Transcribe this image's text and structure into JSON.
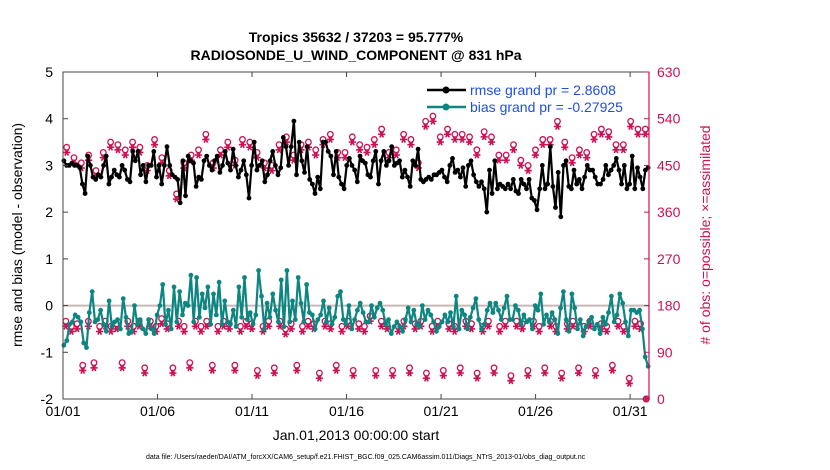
{
  "chart_data": {
    "type": "line",
    "title": "Tropics 35632 / 37203 = 95.777%",
    "subtitle": "RADIOSONDE_U_WIND_COMPONENT @ 831 hPa",
    "xlabel": "Jan.01,2013 00:00:00 start",
    "ylabel": "rmse and bias (model - observation)",
    "ylabel_right": "# of obs: o=possible; ×=assimilated",
    "footer": "data file: /Users/raeder/DAI/ATM_forcXX/CAM6_setup/f.e21.FHIST_BGC.f09_025.CAM6assim.011/Diags_NTrS_2013-01/obs_diag_output.nc",
    "x_tick_labels": [
      "01/01",
      "01/06",
      "01/11",
      "01/16",
      "01/21",
      "01/26",
      "01/31"
    ],
    "x_tick_days": [
      0,
      5,
      10,
      15,
      20,
      25,
      30
    ],
    "xlim": [
      0,
      31
    ],
    "ylim": [
      -2,
      5
    ],
    "y_ticks": [
      "-2",
      "-1",
      "0",
      "1",
      "2",
      "3",
      "4",
      "5"
    ],
    "y2lim": [
      0,
      630
    ],
    "y2_ticks": [
      "0",
      "90",
      "180",
      "270",
      "360",
      "450",
      "540",
      "630"
    ],
    "colors": {
      "rmse": "#000000",
      "bias": "#0d8580",
      "obs": "#cc1155",
      "legend_text": "#1f4fe0",
      "zero_line": "#c8b8b8"
    },
    "legend": {
      "position": "top-right",
      "entries": [
        "rmse grand pr = 2.8608",
        "bias grand pr = -0.27925"
      ]
    },
    "series": [
      {
        "name": "rmse grand pr = 2.8608",
        "axis": "left",
        "values": [
          3.1,
          3.0,
          3.0,
          3.05,
          3.0,
          3.0,
          2.95,
          2.6,
          2.4,
          3.2,
          3.0,
          2.75,
          2.7,
          2.8,
          2.75,
          3.0,
          3.2,
          2.6,
          2.75,
          2.9,
          2.8,
          2.75,
          3.0,
          2.9,
          2.7,
          2.65,
          3.3,
          3.1,
          3.3,
          2.8,
          3.0,
          2.65,
          3.0,
          3.0,
          3.3,
          2.75,
          3.0,
          2.6,
          3.0,
          3.4,
          3.0,
          2.8,
          2.75,
          2.7,
          2.2,
          3.1,
          2.35,
          3.2,
          3.1,
          3.05,
          2.55,
          2.75,
          2.7,
          3.1,
          3.2,
          3.0,
          2.9,
          3.1,
          3.2,
          2.85,
          3.0,
          3.3,
          3.05,
          2.9,
          3.35,
          3.0,
          2.75,
          2.9,
          3.1,
          2.8,
          2.3,
          3.0,
          3.5,
          2.9,
          3.0,
          3.1,
          2.65,
          2.8,
          3.1,
          3.3,
          3.0,
          2.8,
          2.95,
          3.6,
          3.4,
          3.0,
          3.4,
          3.95,
          2.8,
          3.5,
          3.1,
          2.85,
          3.4,
          2.7,
          2.6,
          2.4,
          2.75,
          2.5,
          3.5,
          3.5,
          3.3,
          3.2,
          2.8,
          3.3,
          2.75,
          2.6,
          2.5,
          3.0,
          3.15,
          3.0,
          2.9,
          2.65,
          3.2,
          3.1,
          3.05,
          2.8,
          2.75,
          3.1,
          3.3,
          2.6,
          3.1,
          3.3,
          3.0,
          3.1,
          3.4,
          3.0,
          3.05,
          3.1,
          2.75,
          2.9,
          2.75,
          2.55,
          3.1,
          3.0,
          3.35,
          2.7,
          2.65,
          2.7,
          2.75,
          2.7,
          2.8,
          2.8,
          2.85,
          2.9,
          2.75,
          2.65,
          3.0,
          3.15,
          2.85,
          2.9,
          2.75,
          2.95,
          2.55,
          3.0,
          3.1,
          2.8,
          2.65,
          2.55,
          2.65,
          2.5,
          2.0,
          2.9,
          2.4,
          3.1,
          2.5,
          2.6,
          2.55,
          2.5,
          2.6,
          2.5,
          2.7,
          2.45,
          2.4,
          2.7,
          2.6,
          2.5,
          2.7,
          2.3,
          2.25,
          2.05,
          2.5,
          3.0,
          2.5,
          2.6,
          3.4,
          2.55,
          2.1,
          2.85,
          1.9,
          3.0,
          3.1,
          2.55,
          2.5,
          2.9,
          2.6,
          2.7,
          2.5,
          2.75,
          3.0,
          2.9,
          2.9,
          2.75,
          2.6,
          2.6,
          2.7,
          3.0,
          2.8,
          2.9,
          3.0,
          3.15,
          2.9,
          2.6,
          3.0,
          2.5,
          2.6,
          3.2,
          2.5,
          2.95,
          2.75,
          2.5,
          2.9,
          2.95
        ]
      },
      {
        "name": "bias grand pr = -0.27925",
        "axis": "left",
        "values": [
          -0.85,
          -0.75,
          -0.4,
          -0.35,
          -0.2,
          -0.25,
          -0.35,
          -0.8,
          -0.9,
          -0.15,
          0.3,
          -0.35,
          -0.3,
          -0.1,
          -0.4,
          -0.55,
          0.1,
          -0.45,
          -0.35,
          -0.3,
          -0.5,
          0.15,
          -0.25,
          -0.6,
          -0.55,
          0.0,
          -0.4,
          -0.3,
          -0.5,
          -0.6,
          -0.3,
          -0.5,
          -0.6,
          -0.2,
          0.0,
          0.45,
          -0.4,
          -0.1,
          -0.5,
          0.4,
          -0.35,
          0.3,
          -0.2,
          0.05,
          0.0,
          0.65,
          -0.35,
          0.6,
          -0.25,
          0.25,
          -0.05,
          0.4,
          -0.4,
          0.25,
          -0.2,
          0.5,
          -0.4,
          0.1,
          -0.35,
          -0.4,
          -0.1,
          -0.45,
          0.4,
          -0.25,
          0.6,
          -0.3,
          -0.15,
          -0.4,
          -0.2,
          0.75,
          0.2,
          -0.5,
          0.05,
          -0.25,
          0.25,
          -0.1,
          -0.35,
          0.55,
          -0.45,
          0.75,
          -0.35,
          0.1,
          -0.3,
          0.6,
          0.05,
          -0.35,
          0.45,
          -0.15,
          -0.2,
          -0.5,
          -0.3,
          -0.2,
          0.1,
          -0.35,
          -0.05,
          -0.4,
          -0.25,
          0.2,
          0.3,
          -0.3,
          -0.4,
          0.0,
          -0.5,
          -0.3,
          -0.1,
          0.05,
          -0.15,
          -0.35,
          -0.35,
          0.0,
          -0.25,
          -0.05,
          0.05,
          -0.1,
          -0.4,
          -0.3,
          -0.6,
          -0.45,
          -0.35,
          -0.45,
          -0.55,
          -0.3,
          -0.05,
          -0.35,
          -0.1,
          -0.4,
          -0.45,
          0.0,
          -0.3,
          -0.1,
          -0.2,
          -0.35,
          -0.55,
          -0.45,
          -0.35,
          -0.2,
          -0.35,
          -0.15,
          -0.45,
          0.2,
          -0.5,
          -0.1,
          -0.2,
          -0.5,
          -0.25,
          -0.05,
          0.15,
          -0.3,
          -0.5,
          -0.4,
          -0.1,
          0.05,
          -0.15,
          0.05,
          -0.1,
          -0.3,
          -0.05,
          0.2,
          -0.3,
          -0.3,
          0.0,
          -0.1,
          -0.4,
          -0.2,
          -0.35,
          -0.3,
          -0.5,
          0.0,
          -0.1,
          0.25,
          -0.4,
          -0.2,
          -0.35,
          -0.15,
          -0.3,
          -0.6,
          -0.05,
          0.3,
          -0.3,
          -0.55,
          0.25,
          -0.05,
          -0.5,
          -0.3,
          -0.65,
          -0.45,
          -0.35,
          -0.25,
          -0.5,
          -0.4,
          -0.6,
          -0.25,
          -0.4,
          -0.15,
          0.2,
          -0.35,
          -0.2,
          0.25,
          0.05,
          -0.35,
          -0.65,
          -0.1,
          -0.1,
          -0.15,
          -0.1,
          -0.5,
          -1.1,
          -1.3
        ]
      }
    ],
    "obs_counts": {
      "axis": "right",
      "possible_upper": [
        485,
        465,
        455,
        470,
        440,
        475,
        495,
        490,
        480,
        495,
        485,
        450,
        500,
        465,
        440,
        395,
        455,
        470,
        480,
        510,
        455,
        480,
        495,
        460,
        500,
        495,
        475,
        455,
        450,
        490,
        505,
        470,
        490,
        495,
        480,
        500,
        510,
        475,
        475,
        505,
        490,
        485,
        500,
        520,
        475,
        480,
        510,
        500,
        455,
        535,
        545,
        505,
        520,
        510,
        510,
        505,
        480,
        515,
        505,
        470,
        470,
        490,
        460,
        450,
        480,
        500,
        500,
        535,
        495,
        465,
        480,
        475,
        510,
        520,
        515,
        490,
        490,
        535,
        520,
        520
      ],
      "assimilated_upper": [
        475,
        455,
        445,
        460,
        430,
        465,
        485,
        480,
        470,
        485,
        475,
        440,
        490,
        455,
        430,
        385,
        445,
        460,
        470,
        500,
        445,
        470,
        485,
        450,
        490,
        485,
        465,
        445,
        440,
        480,
        495,
        460,
        480,
        485,
        470,
        490,
        500,
        465,
        465,
        495,
        480,
        475,
        490,
        510,
        465,
        470,
        500,
        490,
        445,
        525,
        535,
        495,
        510,
        500,
        500,
        495,
        470,
        505,
        495,
        460,
        460,
        480,
        450,
        440,
        470,
        490,
        490,
        525,
        485,
        455,
        470,
        465,
        500,
        510,
        505,
        480,
        480,
        525,
        510,
        510
      ],
      "possible_lower": [
        150,
        140,
        145,
        65,
        150,
        70,
        140,
        150,
        140,
        145,
        70,
        150,
        140,
        150,
        60,
        150,
        140,
        155,
        145,
        60,
        150,
        140,
        70,
        150,
        140,
        150,
        65,
        140,
        150,
        145,
        65,
        140,
        150,
        145,
        55,
        140,
        150,
        60,
        150,
        135,
        145,
        65,
        140,
        150,
        145,
        50,
        150,
        145,
        65,
        140,
        150,
        55,
        145,
        140,
        160,
        55,
        150,
        145,
        55,
        140,
        150,
        60,
        145,
        150,
        50,
        140,
        150,
        55,
        145,
        140,
        60,
        150,
        145,
        50,
        140,
        150,
        60,
        140,
        150,
        45,
        150,
        145,
        55,
        150,
        140,
        60,
        150,
        140,
        50,
        145,
        150,
        60,
        140,
        150,
        55,
        145,
        140,
        65,
        150,
        140,
        40,
        150,
        145,
        0
      ],
      "assimilated_lower": [
        140,
        130,
        135,
        55,
        140,
        60,
        130,
        140,
        130,
        135,
        60,
        140,
        130,
        140,
        50,
        140,
        130,
        145,
        135,
        50,
        140,
        130,
        60,
        140,
        130,
        140,
        55,
        130,
        140,
        135,
        55,
        130,
        140,
        135,
        45,
        130,
        140,
        50,
        140,
        125,
        135,
        55,
        130,
        140,
        135,
        40,
        140,
        135,
        55,
        130,
        140,
        45,
        135,
        130,
        150,
        45,
        140,
        135,
        45,
        130,
        140,
        50,
        135,
        140,
        40,
        130,
        140,
        45,
        135,
        130,
        50,
        140,
        135,
        40,
        130,
        140,
        50,
        130,
        140,
        35,
        140,
        135,
        45,
        140,
        130,
        50,
        140,
        130,
        40,
        135,
        140,
        50,
        130,
        140,
        45,
        135,
        130,
        55,
        140,
        130,
        30,
        140,
        135,
        0
      ]
    }
  }
}
